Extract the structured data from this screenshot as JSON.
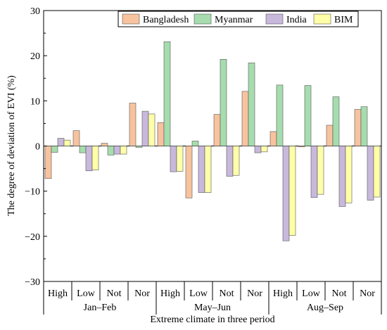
{
  "chart_data": {
    "type": "bar",
    "title": "",
    "xlabel": "Extreme climate in three period",
    "ylabel": "The degree of deviation of EVI (%)",
    "ylim": [
      -30,
      30
    ],
    "yticks": [
      30,
      20,
      10,
      0,
      -10,
      -20,
      -30
    ],
    "ytick_labels": [
      "30",
      "20",
      "10",
      "0",
      "−10",
      "−20",
      "−30"
    ],
    "categories": [
      "High",
      "Low",
      "Not",
      "Nor",
      "High",
      "Low",
      "Not",
      "Nor",
      "High",
      "Low",
      "Not",
      "Nor"
    ],
    "groups": [
      {
        "label": "Jan–Feb",
        "span": [
          0,
          3
        ]
      },
      {
        "label": "May–Jun",
        "span": [
          4,
          7
        ]
      },
      {
        "label": "Aug–Sep",
        "span": [
          8,
          11
        ]
      }
    ],
    "series": [
      {
        "name": "Bangladesh",
        "color": "#f7c39e",
        "values": [
          -7.2,
          3.4,
          0.6,
          9.5,
          5.2,
          -11.5,
          7.0,
          12.1,
          3.2,
          -0.2,
          4.6,
          8.1
        ]
      },
      {
        "name": "Myanmar",
        "color": "#a6dcae",
        "values": [
          -1.4,
          -1.5,
          -2.0,
          -0.3,
          23.1,
          1.1,
          19.2,
          18.4,
          13.5,
          13.4,
          10.9,
          8.7
        ]
      },
      {
        "name": "India",
        "color": "#c8b8dc",
        "values": [
          1.7,
          -5.5,
          -1.8,
          7.7,
          -5.7,
          -10.3,
          -6.7,
          -1.5,
          -21.0,
          -11.4,
          -13.4,
          -12.0
        ]
      },
      {
        "name": "BIM",
        "color": "#ffffa8",
        "values": [
          1.3,
          -5.3,
          -1.8,
          7.1,
          -5.6,
          -10.3,
          -6.5,
          -1.3,
          -19.8,
          -10.7,
          -12.6,
          -11.3
        ]
      }
    ],
    "legend_position": "top-right",
    "grid": false
  }
}
